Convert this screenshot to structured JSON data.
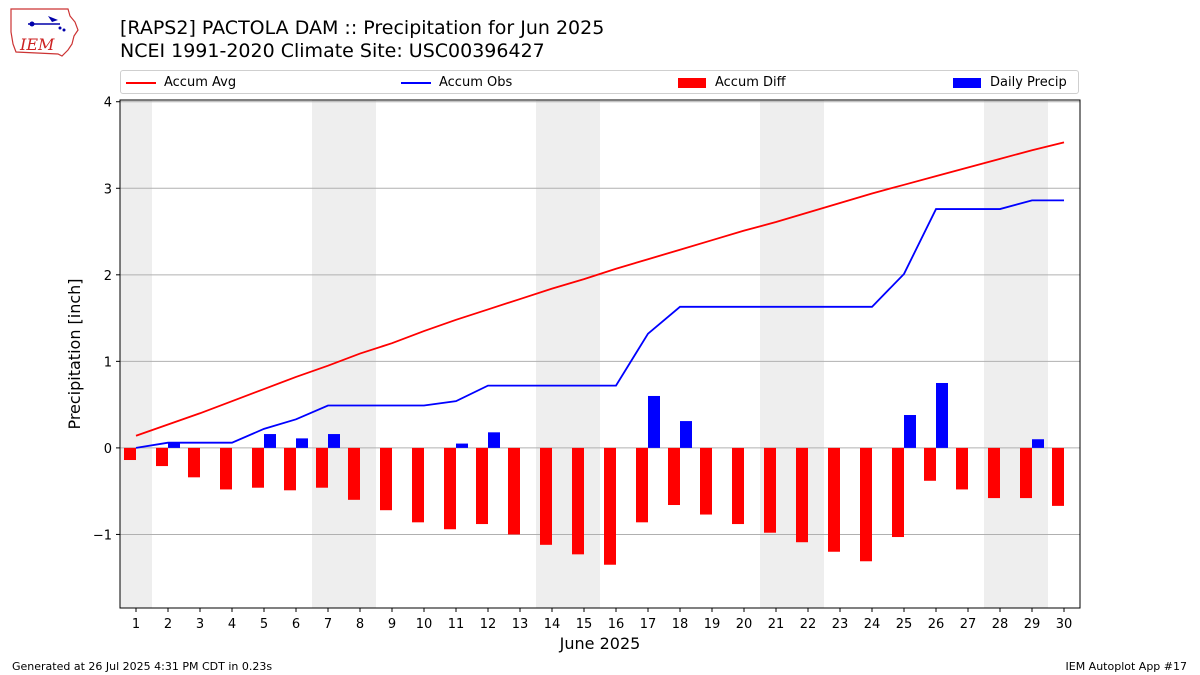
{
  "header": {
    "title": "[RAPS2] PACTOLA DAM :: Precipitation for Jun 2025",
    "subtitle": "NCEI 1991-2020 Climate Site: USC00396427"
  },
  "logo": {
    "text": "IEM"
  },
  "legend": {
    "items": [
      {
        "label": "Accum Avg",
        "kind": "line",
        "color": "#ff0000"
      },
      {
        "label": "Accum Obs",
        "kind": "line",
        "color": "#0000ff"
      },
      {
        "label": "Accum Diff",
        "kind": "bar",
        "color": "#ff0000"
      },
      {
        "label": "Daily Precip",
        "kind": "bar",
        "color": "#0000ff"
      }
    ],
    "placement": "top"
  },
  "footer": {
    "generated": "Generated at 26 Jul 2025 4:31 PM CDT in 0.23s",
    "app": "IEM Autoplot App #17"
  },
  "chart_data": {
    "type": "bar",
    "xlabel": "June 2025",
    "ylabel": "Precipitation [inch]",
    "ylim": [
      -1.85,
      4.02
    ],
    "yticks": [
      -1,
      0,
      1,
      2,
      3,
      4
    ],
    "xticks": [
      1,
      2,
      3,
      4,
      5,
      6,
      7,
      8,
      9,
      10,
      11,
      12,
      13,
      14,
      15,
      16,
      17,
      18,
      19,
      20,
      21,
      22,
      23,
      24,
      25,
      26,
      27,
      28,
      29,
      30
    ],
    "grid": "horizontal",
    "weekend_shading_days": [
      1,
      7,
      8,
      14,
      15,
      21,
      22,
      28,
      29
    ],
    "shade_color": "#eeeeee",
    "series": [
      {
        "name": "Accum Avg",
        "type": "line",
        "color": "#ff0000",
        "values": [
          0.14,
          0.27,
          0.4,
          0.54,
          0.68,
          0.82,
          0.95,
          1.09,
          1.21,
          1.35,
          1.48,
          1.6,
          1.72,
          1.84,
          1.95,
          2.07,
          2.18,
          2.29,
          2.4,
          2.51,
          2.61,
          2.72,
          2.83,
          2.94,
          3.04,
          3.14,
          3.24,
          3.34,
          3.44,
          3.53
        ]
      },
      {
        "name": "Accum Obs",
        "type": "line",
        "color": "#0000ff",
        "values": [
          0.0,
          0.06,
          0.06,
          0.06,
          0.22,
          0.33,
          0.49,
          0.49,
          0.49,
          0.49,
          0.54,
          0.72,
          0.72,
          0.72,
          0.72,
          0.72,
          1.32,
          1.63,
          1.63,
          1.63,
          1.63,
          1.63,
          1.63,
          1.63,
          2.01,
          2.76,
          2.76,
          2.76,
          2.86,
          2.86
        ]
      },
      {
        "name": "Accum Diff",
        "type": "bar",
        "color": "#ff0000",
        "values": [
          -0.14,
          -0.21,
          -0.34,
          -0.48,
          -0.46,
          -0.49,
          -0.46,
          -0.6,
          -0.72,
          -0.86,
          -0.94,
          -0.88,
          -1.0,
          -1.12,
          -1.23,
          -1.35,
          -0.86,
          -0.66,
          -0.77,
          -0.88,
          -0.98,
          -1.09,
          -1.2,
          -1.31,
          -1.03,
          -0.38,
          -0.48,
          -0.58,
          -0.58,
          -0.67
        ]
      },
      {
        "name": "Daily Precip",
        "type": "bar",
        "color": "#0000ff",
        "values": [
          0.0,
          0.06,
          0.0,
          0.0,
          0.16,
          0.11,
          0.16,
          0.0,
          0.0,
          0.0,
          0.05,
          0.18,
          0.0,
          0.0,
          0.0,
          0.0,
          0.6,
          0.31,
          0.0,
          0.0,
          0.0,
          0.0,
          0.0,
          0.0,
          0.38,
          0.75,
          0.0,
          0.0,
          0.1,
          0.0
        ]
      }
    ]
  }
}
